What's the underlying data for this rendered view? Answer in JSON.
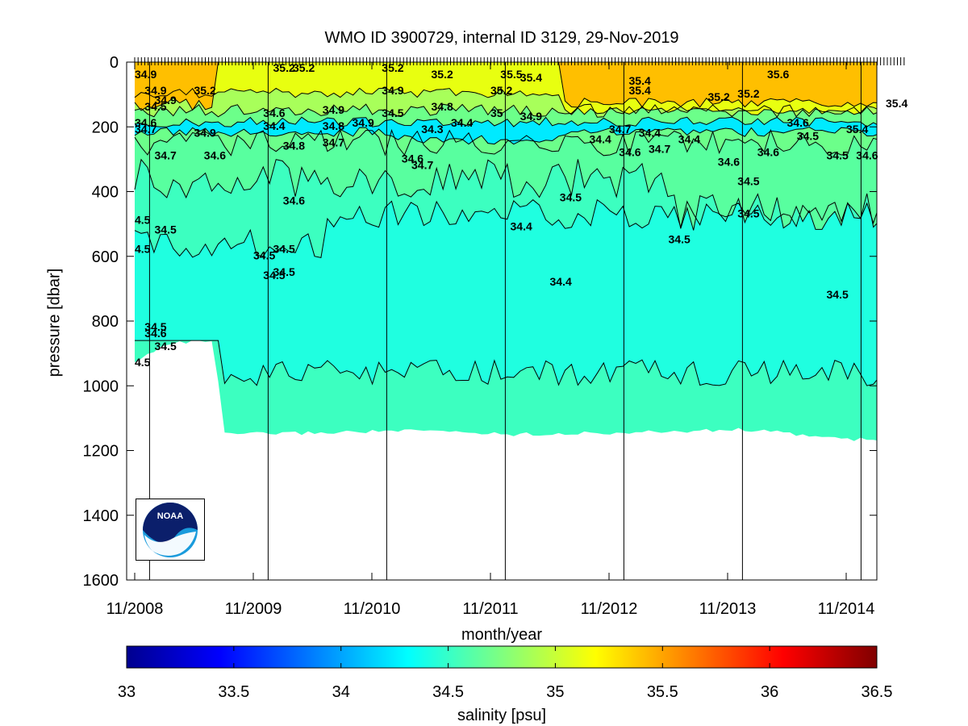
{
  "chart_data": {
    "type": "heatmap",
    "title": "WMO ID 3900729, internal ID 3129, 29-Nov-2019",
    "xlabel": "month/year",
    "ylabel": "pressure [dbar]",
    "x_ticks": [
      "11/2008",
      "11/2009",
      "11/2010",
      "11/2011",
      "11/2012",
      "11/2013",
      "11/2014"
    ],
    "x_range": [
      "2008-11",
      "2015-05"
    ],
    "y_ticks": [
      0,
      200,
      400,
      600,
      800,
      1000,
      1200,
      1400,
      1600
    ],
    "ylim": [
      1600,
      0
    ],
    "y_reversed": true,
    "colorbar": {
      "label": "salinity [psu]",
      "range": [
        33,
        36.5
      ],
      "ticks": [
        33,
        33.5,
        34,
        34.5,
        35,
        35.5,
        36,
        36.5
      ],
      "colormap": "jet"
    },
    "bottom_depth_profile_dbar": [
      {
        "date": "2008-11",
        "depth": 930
      },
      {
        "date": "2009-02",
        "depth": 870
      },
      {
        "date": "2009-07",
        "depth": 860
      },
      {
        "date": "2009-08",
        "depth": 1150
      },
      {
        "date": "2010-06",
        "depth": 1145
      },
      {
        "date": "2010-12",
        "depth": 1140
      },
      {
        "date": "2011-06",
        "depth": 1140
      },
      {
        "date": "2012-01",
        "depth": 1150
      },
      {
        "date": "2013-01",
        "depth": 1145
      },
      {
        "date": "2014-01",
        "depth": 1135
      },
      {
        "date": "2014-11",
        "depth": 1165
      },
      {
        "date": "2015-05",
        "depth": 1170
      }
    ],
    "salinity_layers": [
      {
        "salinity": 34.55,
        "top_dbar": 0,
        "color": "#3cffc0"
      },
      {
        "salinity": 34.45,
        "top_dbar": 560,
        "color": "#1fffe0"
      },
      {
        "salinity": 34.5,
        "top_dbar": 940,
        "color": "#3cffc0"
      },
      {
        "salinity": 34.6,
        "top_dbar": 0,
        "color": "#58ff9f"
      },
      {
        "salinity": 34.7,
        "top_dbar": 0,
        "color": "#6cff8a"
      },
      {
        "salinity": 34.3,
        "top_dbar": 170,
        "color": "#00eaff"
      },
      {
        "salinity": 34.9,
        "top_dbar": 100,
        "color": "#a8ff5a"
      },
      {
        "salinity": 35.2,
        "top_dbar": 0,
        "color": "#e8ff10"
      },
      {
        "salinity": 35.4,
        "top_dbar": 0,
        "color": "#ffbf00"
      }
    ],
    "contour_labels": [
      {
        "date": "2008-11",
        "pressure": 20,
        "text": "34.9"
      },
      {
        "date": "2008-12",
        "pressure": 70,
        "text": "34.9"
      },
      {
        "date": "2009-01",
        "pressure": 100,
        "text": "34.9"
      },
      {
        "date": "2008-12",
        "pressure": 120,
        "text": "34.5"
      },
      {
        "date": "2008-11",
        "pressure": 170,
        "text": "34.6"
      },
      {
        "date": "2008-11",
        "pressure": 190,
        "text": "34.7"
      },
      {
        "date": "2009-01",
        "pressure": 270,
        "text": "34.7"
      },
      {
        "date": "2009-05",
        "pressure": 70,
        "text": "35.2"
      },
      {
        "date": "2009-05",
        "pressure": 200,
        "text": "34.9"
      },
      {
        "date": "2009-06",
        "pressure": 270,
        "text": "34.6"
      },
      {
        "date": "2010-01",
        "pressure": 0,
        "text": "35.2"
      },
      {
        "date": "2010-03",
        "pressure": 0,
        "text": "35.2"
      },
      {
        "date": "2009-12",
        "pressure": 140,
        "text": "34.6"
      },
      {
        "date": "2009-12",
        "pressure": 180,
        "text": "34.4"
      },
      {
        "date": "2010-02",
        "pressure": 240,
        "text": "34.8"
      },
      {
        "date": "2010-02",
        "pressure": 410,
        "text": "34.6"
      },
      {
        "date": "2010-06",
        "pressure": 130,
        "text": "34.9"
      },
      {
        "date": "2010-06",
        "pressure": 180,
        "text": "34.8"
      },
      {
        "date": "2010-06",
        "pressure": 230,
        "text": "34.7"
      },
      {
        "date": "2010-09",
        "pressure": 170,
        "text": "34.9"
      },
      {
        "date": "2010-12",
        "pressure": 0,
        "text": "35.2"
      },
      {
        "date": "2010-12",
        "pressure": 70,
        "text": "34.9"
      },
      {
        "date": "2010-12",
        "pressure": 140,
        "text": "34.5"
      },
      {
        "date": "2011-02",
        "pressure": 280,
        "text": "34.6"
      },
      {
        "date": "2011-03",
        "pressure": 300,
        "text": "34.7"
      },
      {
        "date": "2011-05",
        "pressure": 20,
        "text": "35.2"
      },
      {
        "date": "2011-04",
        "pressure": 190,
        "text": "34.3"
      },
      {
        "date": "2011-05",
        "pressure": 120,
        "text": "34.8"
      },
      {
        "date": "2011-07",
        "pressure": 170,
        "text": "34.4"
      },
      {
        "date": "2011-11",
        "pressure": 70,
        "text": "35.2"
      },
      {
        "date": "2011-11",
        "pressure": 140,
        "text": "35"
      },
      {
        "date": "2011-12",
        "pressure": 20,
        "text": "35.5"
      },
      {
        "date": "2012-02",
        "pressure": 30,
        "text": "35.4"
      },
      {
        "date": "2012-02",
        "pressure": 150,
        "text": "34.9"
      },
      {
        "date": "2012-06",
        "pressure": 400,
        "text": "34.5"
      },
      {
        "date": "2012-01",
        "pressure": 490,
        "text": "34.4"
      },
      {
        "date": "2012-05",
        "pressure": 660,
        "text": "34.4"
      },
      {
        "date": "2012-09",
        "pressure": 220,
        "text": "34.4"
      },
      {
        "date": "2012-11",
        "pressure": 190,
        "text": "34.7"
      },
      {
        "date": "2012-12",
        "pressure": 260,
        "text": "34.6"
      },
      {
        "date": "2013-01",
        "pressure": 40,
        "text": "35.4"
      },
      {
        "date": "2013-01",
        "pressure": 70,
        "text": "35.4"
      },
      {
        "date": "2013-02",
        "pressure": 200,
        "text": "34.4"
      },
      {
        "date": "2013-03",
        "pressure": 250,
        "text": "34.7"
      },
      {
        "date": "2013-06",
        "pressure": 220,
        "text": "34.4"
      },
      {
        "date": "2013-05",
        "pressure": 530,
        "text": "34.5"
      },
      {
        "date": "2013-09",
        "pressure": 90,
        "text": "35.2"
      },
      {
        "date": "2013-10",
        "pressure": 290,
        "text": "34.6"
      },
      {
        "date": "2013-12",
        "pressure": 80,
        "text": "35.2"
      },
      {
        "date": "2013-12",
        "pressure": 350,
        "text": "34.5"
      },
      {
        "date": "2013-12",
        "pressure": 450,
        "text": "34.5"
      },
      {
        "date": "2014-02",
        "pressure": 260,
        "text": "34.6"
      },
      {
        "date": "2014-03",
        "pressure": 20,
        "text": "35.6"
      },
      {
        "date": "2014-05",
        "pressure": 170,
        "text": "34.6"
      },
      {
        "date": "2014-06",
        "pressure": 210,
        "text": "34.5"
      },
      {
        "date": "2014-09",
        "pressure": 270,
        "text": "34.5"
      },
      {
        "date": "2014-09",
        "pressure": 700,
        "text": "34.5"
      },
      {
        "date": "2014-11",
        "pressure": 190,
        "text": "35.4"
      },
      {
        "date": "2014-12",
        "pressure": 270,
        "text": "34.6"
      },
      {
        "date": "2015-03",
        "pressure": 110,
        "text": "35.4"
      },
      {
        "date": "2008-11",
        "pressure": 470,
        "text": "4.5"
      },
      {
        "date": "2009-01",
        "pressure": 500,
        "text": "34.5"
      },
      {
        "date": "2008-11",
        "pressure": 560,
        "text": "4.5"
      },
      {
        "date": "2009-11",
        "pressure": 580,
        "text": "34.5"
      },
      {
        "date": "2010-01",
        "pressure": 560,
        "text": "34.5"
      },
      {
        "date": "2009-12",
        "pressure": 640,
        "text": "34.5"
      },
      {
        "date": "2010-01",
        "pressure": 630,
        "text": "34.5"
      },
      {
        "date": "2008-12",
        "pressure": 800,
        "text": "34.5"
      },
      {
        "date": "2008-12",
        "pressure": 820,
        "text": "34.6"
      },
      {
        "date": "2009-01",
        "pressure": 860,
        "text": "34.5"
      },
      {
        "date": "2008-11",
        "pressure": 910,
        "text": "4.5"
      }
    ]
  },
  "logo": {
    "text": "NOAA"
  }
}
